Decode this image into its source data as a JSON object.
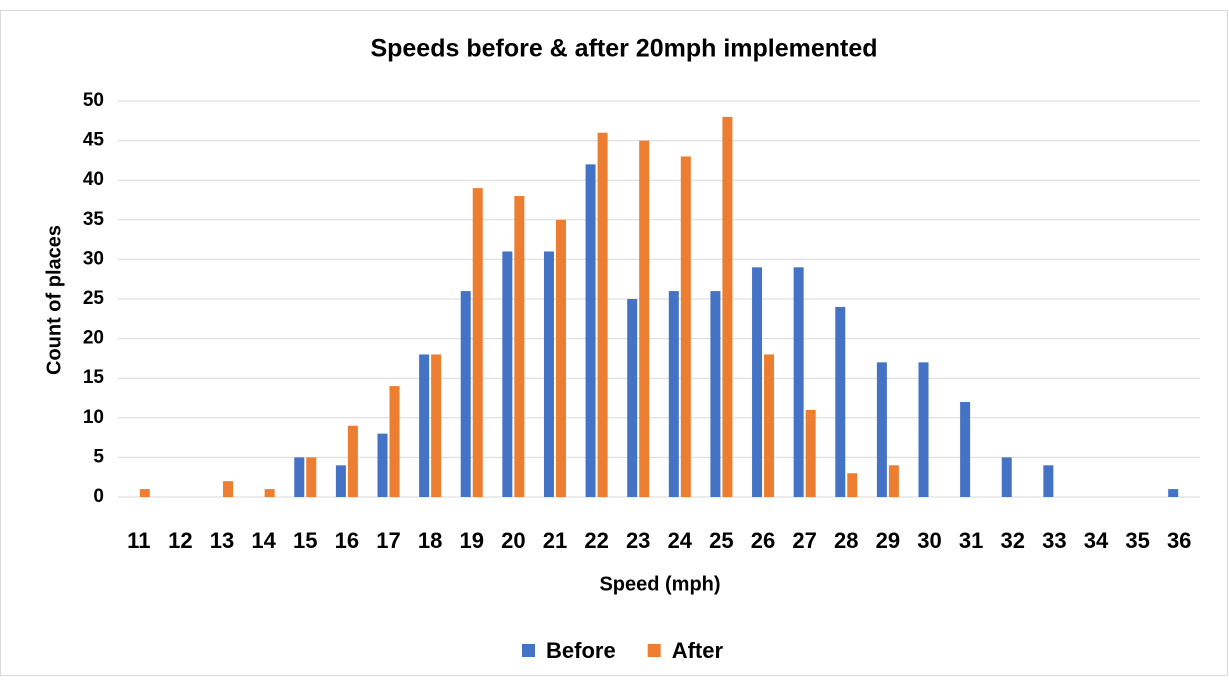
{
  "chart_data": {
    "type": "bar",
    "title": "Speeds before & after 20mph implemented",
    "x_label": "Speed (mph)",
    "y_label": "Count of places",
    "categories": [
      "11",
      "12",
      "13",
      "14",
      "15",
      "16",
      "17",
      "18",
      "19",
      "20",
      "21",
      "22",
      "23",
      "24",
      "25",
      "26",
      "27",
      "28",
      "29",
      "30",
      "31",
      "32",
      "33",
      "34",
      "35",
      "36"
    ],
    "series": [
      {
        "name": "Before",
        "color": "#4472c4",
        "values": [
          0,
          0,
          0,
          0,
          5,
          4,
          8,
          18,
          26,
          31,
          31,
          42,
          25,
          26,
          26,
          29,
          29,
          24,
          17,
          17,
          12,
          5,
          4,
          0,
          0,
          1
        ]
      },
      {
        "name": "After",
        "color": "#ed7d31",
        "values": [
          1,
          0,
          2,
          1,
          5,
          9,
          14,
          18,
          39,
          38,
          35,
          46,
          45,
          43,
          48,
          18,
          11,
          3,
          4,
          0,
          0,
          0,
          0,
          0,
          0,
          0
        ]
      }
    ],
    "ylim": [
      0,
      50
    ],
    "yticks": [
      0,
      5,
      10,
      15,
      20,
      25,
      30,
      35,
      40,
      45,
      50
    ],
    "grid": true,
    "legend": "bottom"
  }
}
